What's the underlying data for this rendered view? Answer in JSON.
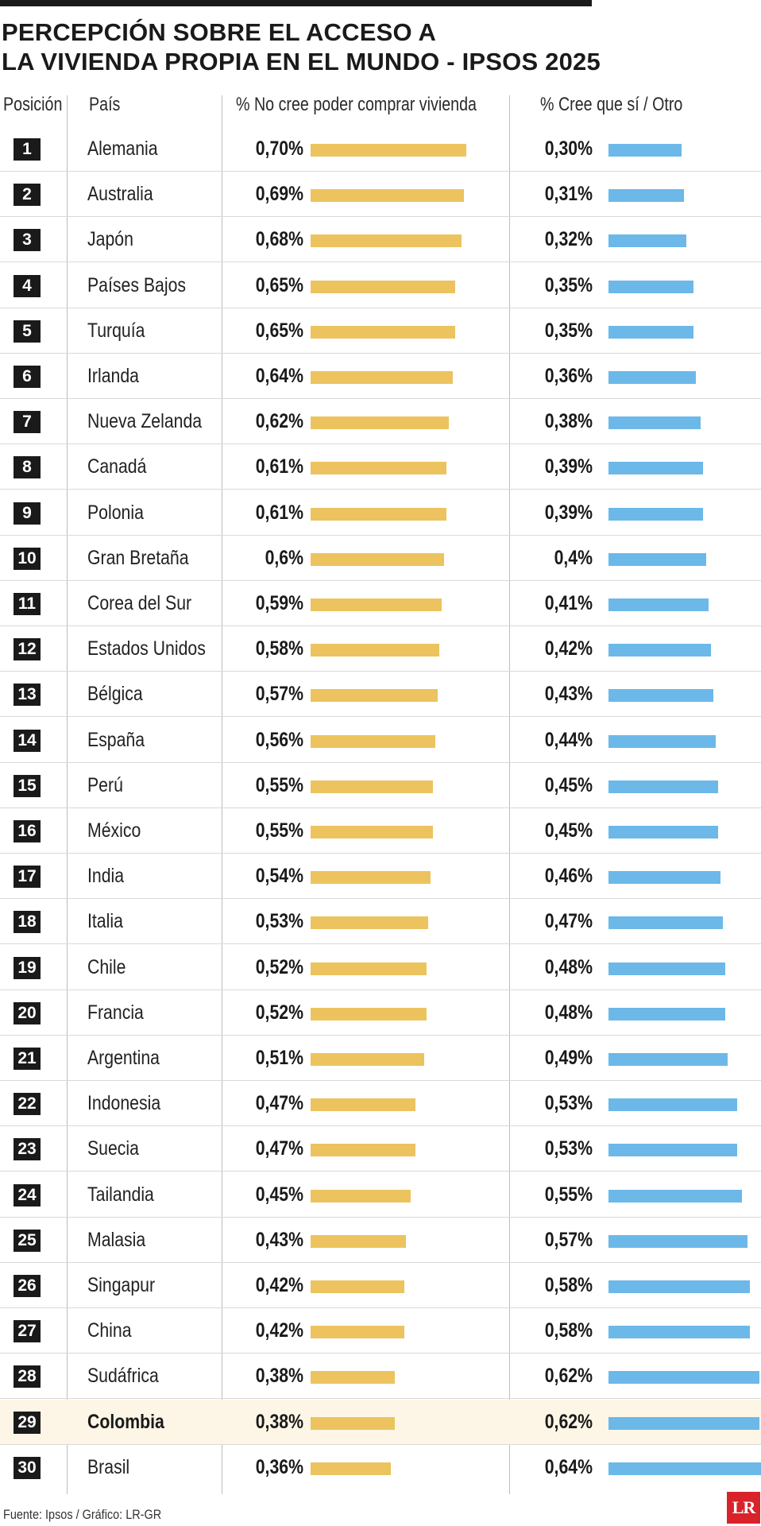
{
  "title_lines": [
    "PERCEPCIÓN SOBRE EL ACCESO A",
    "LA VIVIENDA PROPIA EN EL MUNDO - IPSOS 2025"
  ],
  "headers": {
    "position": "Posición",
    "country": "País",
    "no_col": "% No cree poder comprar vivienda",
    "yes_col": "% Cree que sí / Otro"
  },
  "source": "Fuente: Ipsos / Gráfico: LR-GR",
  "logo": "LR",
  "colors": {
    "no_bar": "#ecc35f",
    "yes_bar": "#6cb8e8",
    "highlight_row": "#fdf6e6"
  },
  "highlight_country": "Colombia",
  "chart_data": {
    "type": "bar",
    "title": "PERCEPCIÓN SOBRE EL ACCESO A LA VIVIENDA PROPIA EN EL MUNDO - IPSOS 2025",
    "categories": [
      "Alemania",
      "Australia",
      "Japón",
      "Países Bajos",
      "Turquía",
      "Irlanda",
      "Nueva Zelanda",
      "Canadá",
      "Polonia",
      "Gran Bretaña",
      "Corea del Sur",
      "Estados Unidos",
      "Bélgica",
      "España",
      "Perú",
      "México",
      "India",
      "Italia",
      "Chile",
      "Francia",
      "Argentina",
      "Indonesia",
      "Suecia",
      "Tailandia",
      "Malasia",
      "Singapur",
      "China",
      "Sudáfrica",
      "Colombia",
      "Brasil"
    ],
    "ranks": [
      "1",
      "2",
      "3",
      "4",
      "5",
      "6",
      "7",
      "8",
      "9",
      "10",
      "11",
      "12",
      "13",
      "14",
      "15",
      "16",
      "17",
      "18",
      "19",
      "20",
      "21",
      "22",
      "23",
      "24",
      "25",
      "26",
      "27",
      "28",
      "29",
      "30"
    ],
    "series": [
      {
        "name": "% No cree poder comprar vivienda",
        "values": [
          0.7,
          0.69,
          0.68,
          0.65,
          0.65,
          0.64,
          0.62,
          0.61,
          0.61,
          0.6,
          0.59,
          0.58,
          0.57,
          0.56,
          0.55,
          0.55,
          0.54,
          0.53,
          0.52,
          0.52,
          0.51,
          0.47,
          0.47,
          0.45,
          0.43,
          0.42,
          0.42,
          0.38,
          0.38,
          0.36
        ],
        "labels": [
          "0,70%",
          "0,69%",
          "0,68%",
          "0,65%",
          "0,65%",
          "0,64%",
          "0,62%",
          "0,61%",
          "0,61%",
          "0,6%",
          "0,59%",
          "0,58%",
          "0,57%",
          "0,56%",
          "0,55%",
          "0,55%",
          "0,54%",
          "0,53%",
          "0,52%",
          "0,52%",
          "0,51%",
          "0,47%",
          "0,47%",
          "0,45%",
          "0,43%",
          "0,42%",
          "0,42%",
          "0,38%",
          "0,38%",
          "0,36%"
        ]
      },
      {
        "name": "% Cree que sí / Otro",
        "values": [
          0.3,
          0.31,
          0.32,
          0.35,
          0.35,
          0.36,
          0.38,
          0.39,
          0.39,
          0.4,
          0.41,
          0.42,
          0.43,
          0.44,
          0.45,
          0.45,
          0.46,
          0.47,
          0.48,
          0.48,
          0.49,
          0.53,
          0.53,
          0.55,
          0.57,
          0.58,
          0.58,
          0.62,
          0.62,
          0.64
        ],
        "labels": [
          "0,30%",
          "0,31%",
          "0,32%",
          "0,35%",
          "0,35%",
          "0,36%",
          "0,38%",
          "0,39%",
          "0,39%",
          "0,4%",
          "0,41%",
          "0,42%",
          "0,43%",
          "0,44%",
          "0,45%",
          "0,45%",
          "0,46%",
          "0,47%",
          "0,48%",
          "0,48%",
          "0,49%",
          "0,53%",
          "0,53%",
          "0,55%",
          "0,57%",
          "0,58%",
          "0,58%",
          "0,62%",
          "0,62%",
          "0,64%"
        ]
      }
    ],
    "xlim": [
      0,
      0.7
    ],
    "grid": false,
    "legend": "column headers"
  }
}
